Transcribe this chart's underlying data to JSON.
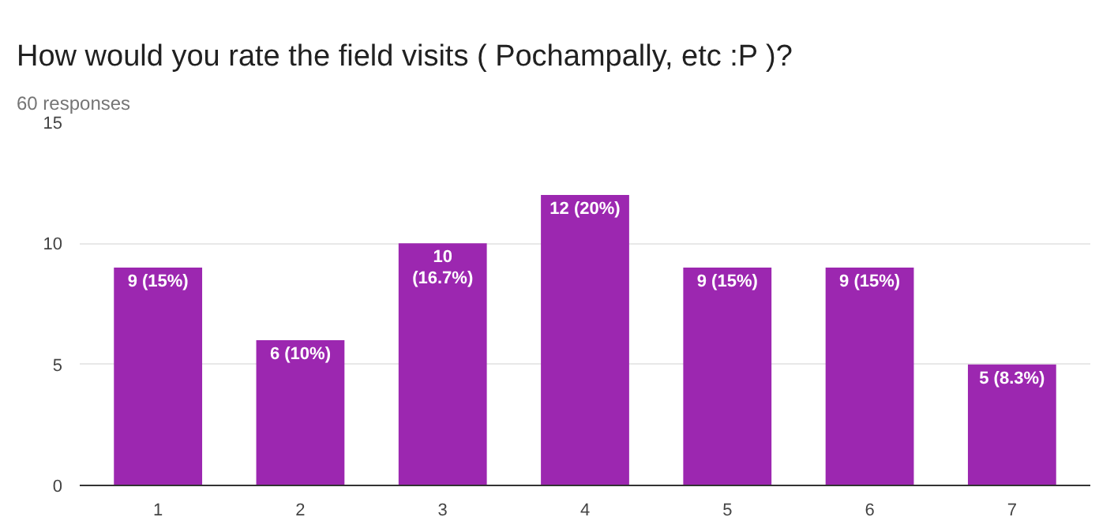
{
  "chart_data": {
    "type": "bar",
    "title": "How would you rate the field visits ( Pochampally, etc :P )?",
    "subtitle": "60 responses",
    "categories": [
      "1",
      "2",
      "3",
      "4",
      "5",
      "6",
      "7"
    ],
    "values": [
      9,
      6,
      10,
      12,
      9,
      9,
      5
    ],
    "color": "#9c27b0",
    "value_labels": [
      "9 (15%)",
      "6 (10%)",
      "10 (16.7%)",
      "12 (20%)",
      "9 (15%)",
      "9 (15%)",
      "5 (8.3%)"
    ],
    "ylim": [
      0,
      15
    ],
    "yticks": [
      0,
      5,
      10,
      15
    ],
    "grid": "y"
  }
}
